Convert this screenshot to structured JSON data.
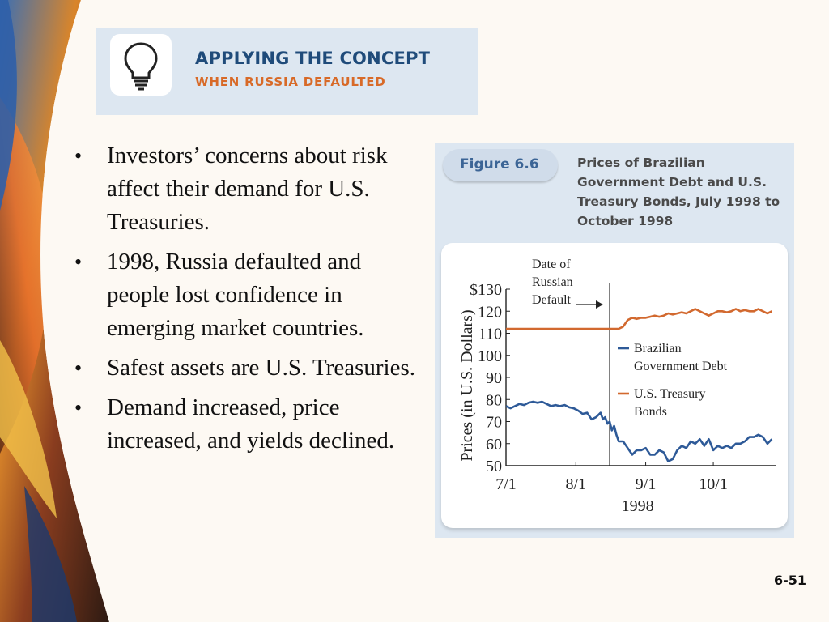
{
  "banner": {
    "title": "APPLYING THE CONCEPT",
    "subtitle": "WHEN RUSSIA DEFAULTED",
    "icon": "lightbulb-icon"
  },
  "bullets": [
    "Investors’ concerns about risk affect their demand for U.S. Treasuries.",
    "1998, Russia defaulted and people lost confidence in emerging market countries.",
    "Safest assets are U.S. Treasuries.",
    "Demand increased, price increased, and yields declined."
  ],
  "figure": {
    "label": "Figure 6.6",
    "title": "Prices of Brazilian Government Debt and U.S. Treasury Bonds, July 1998 to October 1998"
  },
  "chart_data": {
    "type": "line",
    "ylabel": "Prices (in U.S. Dollars)",
    "xlabel": "1998",
    "ylim": [
      50,
      130
    ],
    "yticks": [
      "$130",
      "120",
      "110",
      "100",
      "90",
      "80",
      "70",
      "60",
      "50"
    ],
    "xticks": [
      "7/1",
      "8/1",
      "9/1",
      "10/1"
    ],
    "xlim_days": [
      0,
      120
    ],
    "xtick_days": [
      0,
      31,
      62,
      92
    ],
    "annotation": {
      "lines": [
        "Date of",
        "Russian",
        "Default"
      ],
      "day": 46
    },
    "series": [
      {
        "name": "Brazilian Government Debt",
        "color": "#2e5a98",
        "x": [
          0,
          2,
          4,
          6,
          8,
          10,
          12,
          14,
          16,
          18,
          20,
          22,
          24,
          26,
          28,
          30,
          32,
          34,
          36,
          38,
          40,
          42,
          43,
          44,
          45,
          46,
          47,
          48,
          49,
          50,
          52,
          54,
          56,
          58,
          60,
          62,
          64,
          66,
          68,
          70,
          72,
          74,
          76,
          78,
          80,
          82,
          84,
          86,
          88,
          90,
          92,
          94,
          96,
          98,
          100,
          102,
          104,
          106,
          108,
          110,
          112,
          114,
          116,
          118
        ],
        "y": [
          77,
          76,
          77,
          78,
          77.5,
          78.5,
          79,
          78.5,
          79,
          78,
          77,
          77.5,
          77,
          77.5,
          76.5,
          76,
          75,
          73.5,
          74,
          71,
          72,
          74,
          71,
          72,
          69,
          70,
          66,
          68,
          64,
          61,
          61,
          58,
          55,
          57,
          57,
          58,
          55,
          55,
          57,
          56,
          52,
          53,
          57,
          59,
          58,
          61,
          60,
          62,
          59,
          62,
          57,
          59,
          58,
          59,
          58,
          60,
          60,
          61,
          63,
          63,
          64,
          63,
          60,
          62
        ]
      },
      {
        "name": "U.S. Treasury Bonds",
        "color": "#d2692f",
        "x": [
          0,
          10,
          20,
          30,
          40,
          48,
          50,
          52,
          54,
          56,
          58,
          60,
          62,
          64,
          66,
          68,
          70,
          72,
          74,
          76,
          78,
          80,
          82,
          84,
          86,
          88,
          90,
          92,
          94,
          96,
          98,
          100,
          102,
          104,
          106,
          108,
          110,
          112,
          114,
          116,
          118
        ],
        "y": [
          112,
          112,
          112,
          112,
          112,
          112,
          112,
          113,
          116,
          117,
          116.5,
          117,
          117,
          117.5,
          118,
          117.5,
          118,
          119,
          118.5,
          119,
          119.5,
          119,
          120,
          121,
          120,
          119,
          118,
          119,
          120,
          120,
          119.5,
          120,
          121,
          120,
          120.5,
          120,
          120,
          121,
          120,
          119,
          120
        ]
      }
    ],
    "legend": "right, inside plot"
  },
  "page_number": "6-51"
}
